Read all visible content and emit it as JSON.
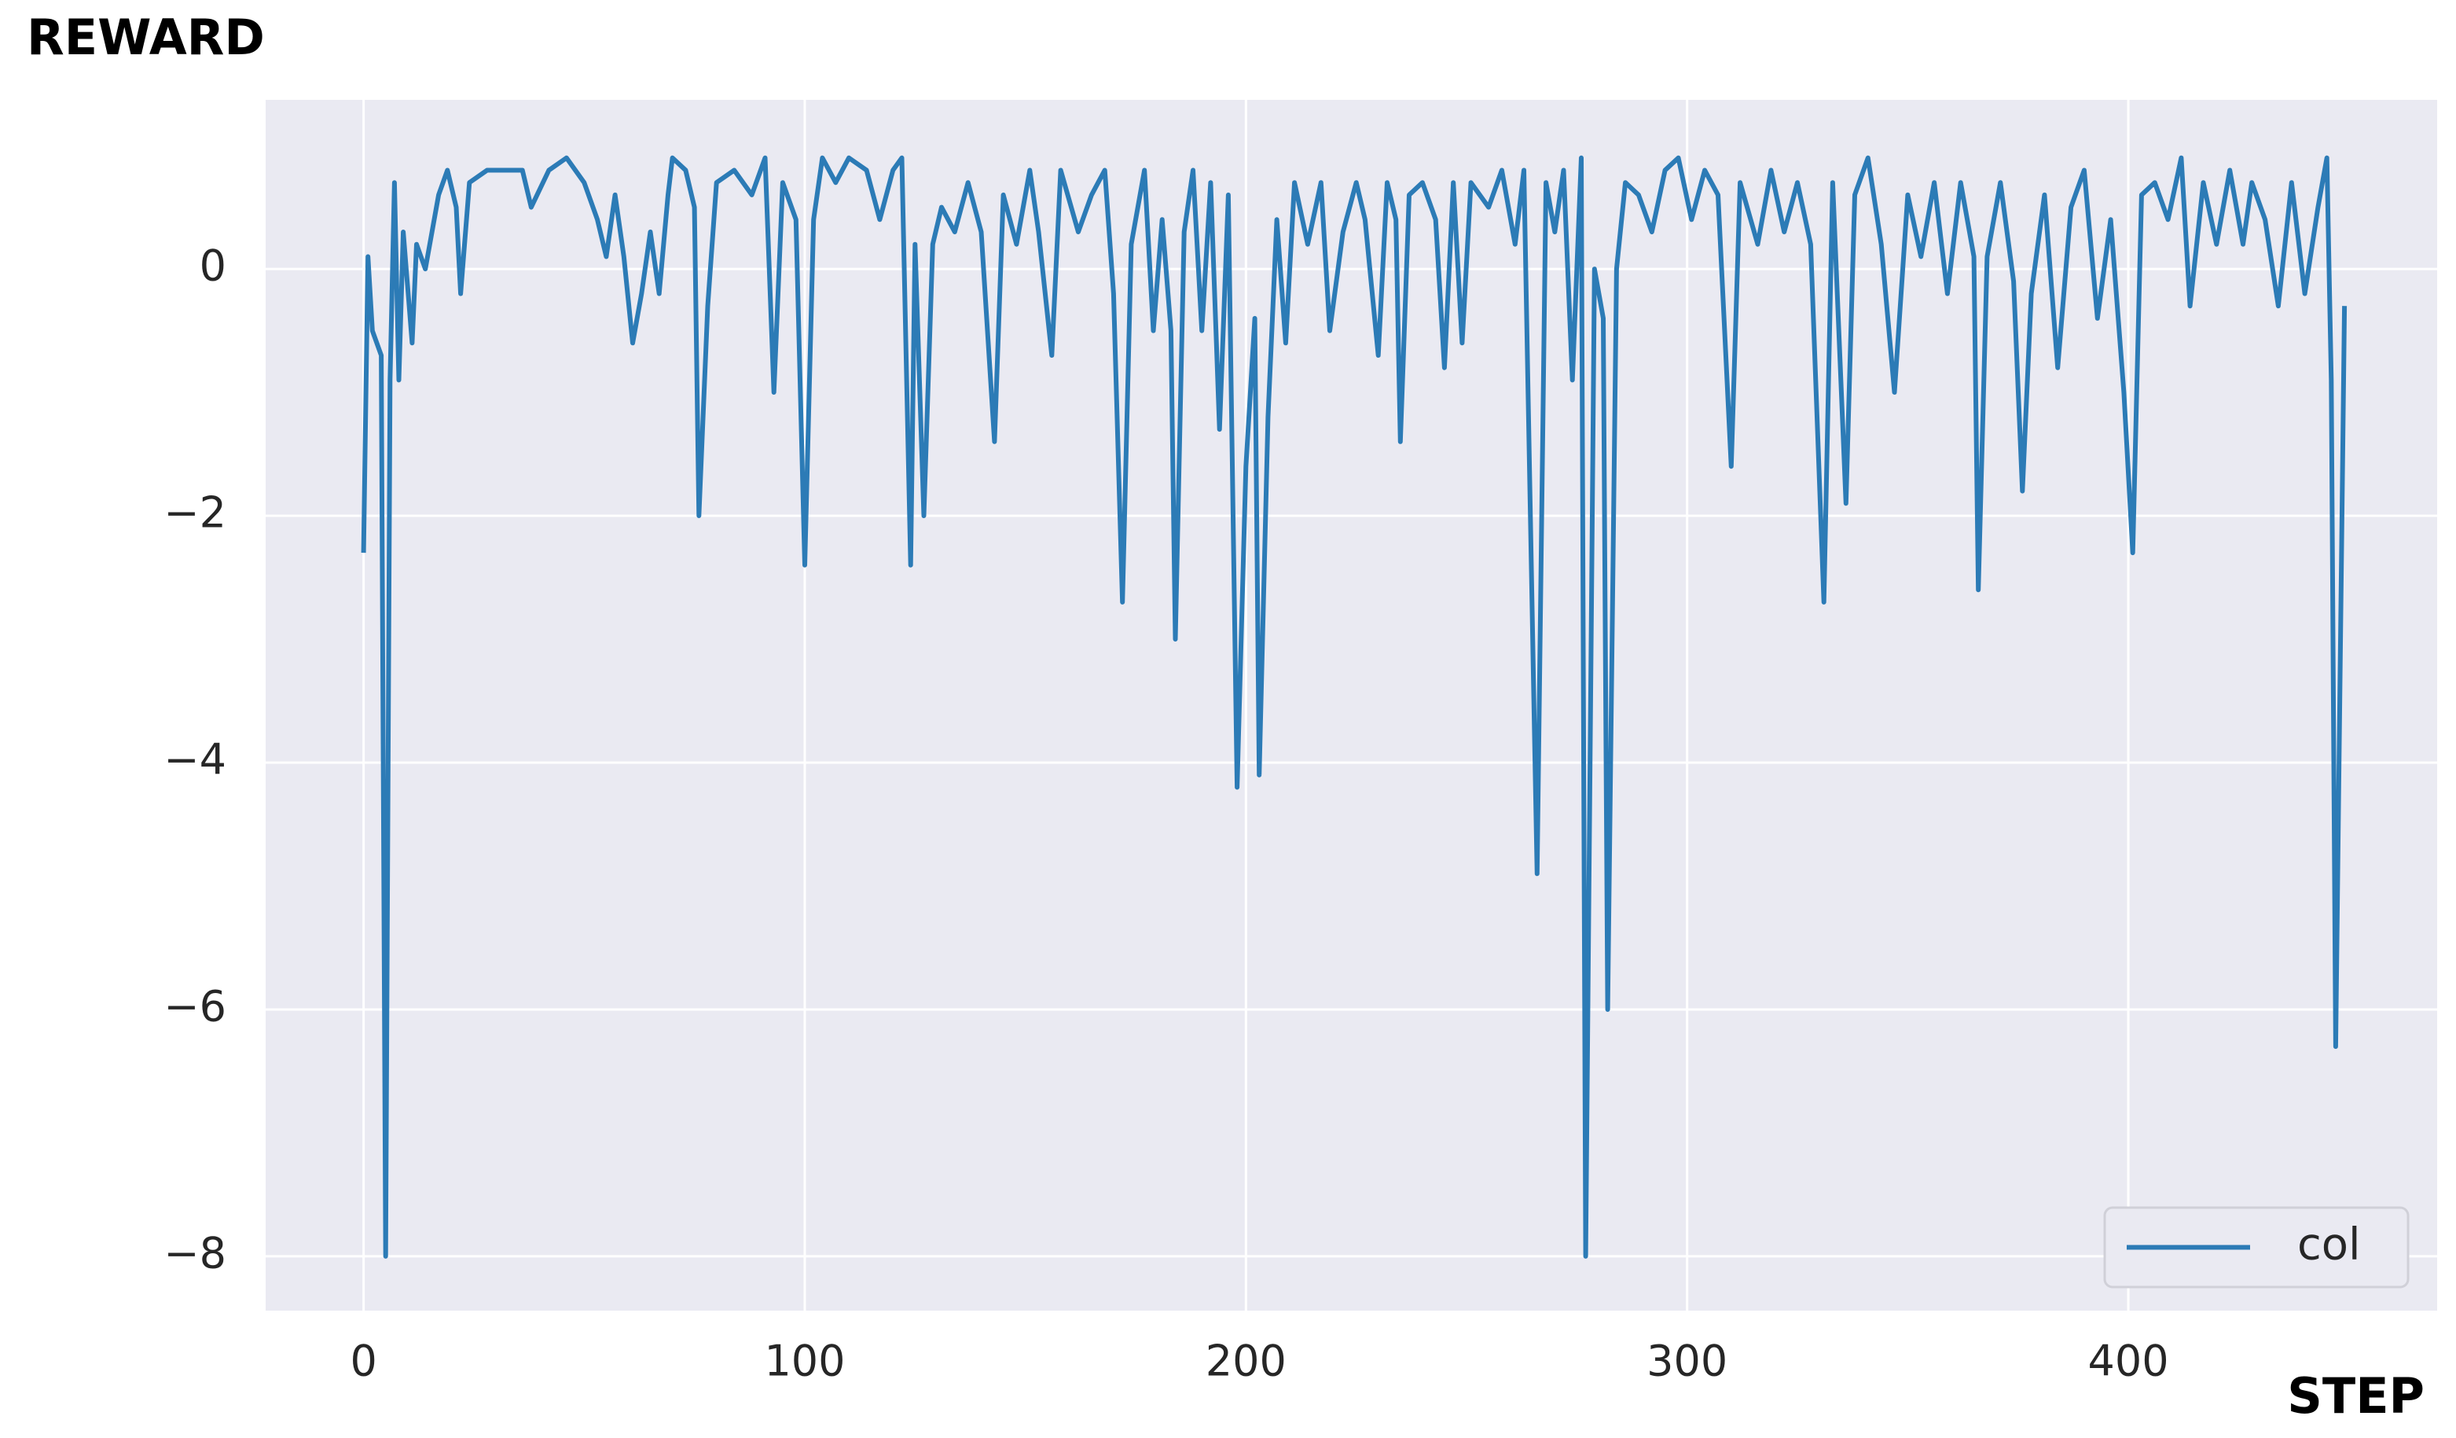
{
  "chart_data": {
    "type": "line",
    "y_label": "REWARD",
    "x_label": "STEP",
    "x": [
      0,
      1,
      2,
      4,
      5,
      6,
      7,
      8,
      9,
      11,
      12,
      14,
      17,
      19,
      21,
      22,
      24,
      28,
      32,
      36,
      38,
      42,
      46,
      50,
      53,
      55,
      57,
      59,
      61,
      63,
      65,
      67,
      69,
      70,
      73,
      75,
      76,
      78,
      80,
      84,
      88,
      91,
      93,
      95,
      98,
      100,
      102,
      104,
      107,
      110,
      114,
      117,
      120,
      122,
      124,
      125,
      127,
      129,
      131,
      134,
      137,
      140,
      143,
      145,
      148,
      151,
      153,
      156,
      158,
      162,
      165,
      168,
      170,
      172,
      174,
      177,
      179,
      181,
      183,
      184,
      186,
      188,
      190,
      192,
      194,
      196,
      198,
      200,
      202,
      203,
      205,
      207,
      209,
      211,
      214,
      217,
      219,
      222,
      225,
      227,
      230,
      232,
      234,
      235,
      237,
      240,
      243,
      245,
      247,
      249,
      251,
      255,
      258,
      261,
      263,
      266,
      268,
      270,
      272,
      274,
      276,
      277,
      279,
      281,
      282,
      284,
      286,
      289,
      292,
      295,
      298,
      301,
      304,
      307,
      310,
      312,
      316,
      319,
      322,
      325,
      328,
      331,
      333,
      336,
      338,
      341,
      344,
      347,
      350,
      353,
      356,
      359,
      362,
      365,
      366,
      368,
      371,
      374,
      376,
      378,
      381,
      384,
      387,
      390,
      393,
      396,
      399,
      401,
      403,
      406,
      409,
      412,
      414,
      417,
      420,
      423,
      426,
      428,
      431,
      434,
      437,
      440,
      443,
      445,
      446,
      447,
      449
    ],
    "series": [
      {
        "name": "col",
        "color": "#2c7bb6",
        "values": [
          -2.3,
          0.1,
          -0.5,
          -0.7,
          -8.0,
          -0.9,
          0.7,
          -0.9,
          0.3,
          -0.6,
          0.2,
          0.0,
          0.6,
          0.8,
          0.5,
          -0.2,
          0.7,
          0.8,
          0.8,
          0.8,
          0.5,
          0.8,
          0.9,
          0.7,
          0.4,
          0.1,
          0.6,
          0.1,
          -0.6,
          -0.2,
          0.3,
          -0.2,
          0.6,
          0.9,
          0.8,
          0.5,
          -2.0,
          -0.3,
          0.7,
          0.8,
          0.6,
          0.9,
          -1.0,
          0.7,
          0.4,
          -2.4,
          0.4,
          0.9,
          0.7,
          0.9,
          0.8,
          0.4,
          0.8,
          0.9,
          -2.4,
          0.2,
          -2.0,
          0.2,
          0.5,
          0.3,
          0.7,
          0.3,
          -1.4,
          0.6,
          0.2,
          0.8,
          0.3,
          -0.7,
          0.8,
          0.3,
          0.6,
          0.8,
          -0.2,
          -2.7,
          0.2,
          0.8,
          -0.5,
          0.4,
          -0.5,
          -3.0,
          0.3,
          0.8,
          -0.5,
          0.7,
          -1.3,
          0.6,
          -4.2,
          -1.6,
          -0.4,
          -4.1,
          -1.2,
          0.4,
          -0.6,
          0.7,
          0.2,
          0.7,
          -0.5,
          0.3,
          0.7,
          0.4,
          -0.7,
          0.7,
          0.4,
          -1.4,
          0.6,
          0.7,
          0.4,
          -0.8,
          0.7,
          -0.6,
          0.7,
          0.5,
          0.8,
          0.2,
          0.8,
          -4.9,
          0.7,
          0.3,
          0.8,
          -0.9,
          0.9,
          -8.0,
          0.0,
          -0.4,
          -6.0,
          0.0,
          0.7,
          0.6,
          0.3,
          0.8,
          0.9,
          0.4,
          0.8,
          0.6,
          -1.6,
          0.7,
          0.2,
          0.8,
          0.3,
          0.7,
          0.2,
          -2.7,
          0.7,
          -1.9,
          0.6,
          0.9,
          0.2,
          -1.0,
          0.6,
          0.1,
          0.7,
          -0.2,
          0.7,
          0.1,
          -2.6,
          0.1,
          0.7,
          -0.1,
          -1.8,
          -0.2,
          0.6,
          -0.8,
          0.5,
          0.8,
          -0.4,
          0.4,
          -1.0,
          -2.3,
          0.6,
          0.7,
          0.4,
          0.9,
          -0.3,
          0.7,
          0.2,
          0.8,
          0.2,
          0.7,
          0.4,
          -0.3,
          0.7,
          -0.2,
          0.5,
          0.9,
          -0.9,
          -6.3,
          -0.3
        ]
      }
    ],
    "xlim": [
      -22.2,
      470
    ],
    "ylim": [
      -8.44,
      1.37
    ],
    "xticks": [
      0,
      100,
      200,
      300,
      400
    ],
    "yticks": [
      0,
      {
        "value": -2,
        "label": "−2"
      },
      {
        "value": -4,
        "label": "−4"
      },
      {
        "value": -6,
        "label": "−6"
      },
      {
        "value": -8,
        "label": "−8"
      }
    ],
    "grid": true,
    "legend": "lower right",
    "background": "#eaeaf2"
  }
}
